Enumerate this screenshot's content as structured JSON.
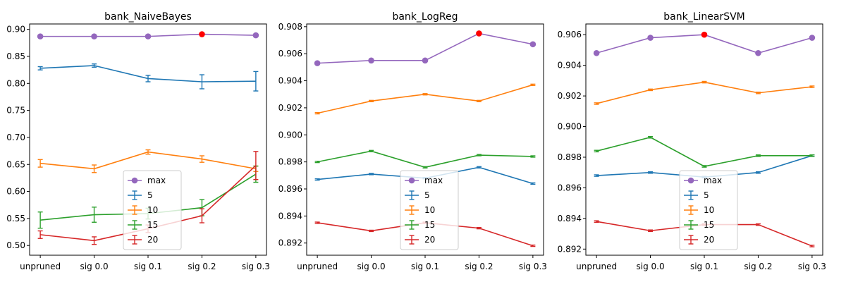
{
  "chart_data": [
    {
      "type": "line",
      "title": "bank_NaiveBayes",
      "categories": [
        "unpruned",
        "sig 0.0",
        "sig 0.1",
        "sig 0.2",
        "sig 0.3"
      ],
      "ylim": [
        0.482,
        0.91
      ],
      "yticks": [
        0.5,
        0.55,
        0.6,
        0.65,
        0.7,
        0.75,
        0.8,
        0.85,
        0.9
      ],
      "ytick_labels": [
        "0.50",
        "0.55",
        "0.60",
        "0.65",
        "0.70",
        "0.75",
        "0.80",
        "0.85",
        "0.90"
      ],
      "grid": false,
      "legend_position": "lower center",
      "max_marker_index": 3,
      "series": [
        {
          "name": "max",
          "color": "#9467bd",
          "marker": "circle",
          "values": [
            0.887,
            0.887,
            0.887,
            0.891,
            0.889
          ]
        },
        {
          "name": "5",
          "color": "#1f77b4",
          "values": [
            0.828,
            0.833,
            0.809,
            0.803,
            0.804
          ],
          "errors": [
            0.003,
            0.003,
            0.006,
            0.013,
            0.018
          ]
        },
        {
          "name": "10",
          "color": "#ff7f0e",
          "values": [
            0.652,
            0.642,
            0.673,
            0.66,
            0.642
          ],
          "errors": [
            0.007,
            0.007,
            0.004,
            0.006,
            0.005
          ]
        },
        {
          "name": "15",
          "color": "#2ca02c",
          "values": [
            0.547,
            0.557,
            0.559,
            0.57,
            0.632
          ],
          "errors": [
            0.015,
            0.014,
            0.01,
            0.015,
            0.015
          ]
        },
        {
          "name": "20",
          "color": "#d62728",
          "values": [
            0.52,
            0.509,
            0.531,
            0.555,
            0.648
          ],
          "errors": [
            0.007,
            0.007,
            0.007,
            0.013,
            0.026
          ]
        }
      ]
    },
    {
      "type": "line",
      "title": "bank_LogReg",
      "categories": [
        "unpruned",
        "sig 0.0",
        "sig 0.1",
        "sig 0.2",
        "sig 0.3"
      ],
      "ylim": [
        0.8911,
        0.9082
      ],
      "yticks": [
        0.892,
        0.894,
        0.896,
        0.898,
        0.9,
        0.902,
        0.904,
        0.906,
        0.908
      ],
      "ytick_labels": [
        "0.892",
        "0.894",
        "0.896",
        "0.898",
        "0.900",
        "0.902",
        "0.904",
        "0.906",
        "0.908"
      ],
      "grid": false,
      "legend_position": "lower center",
      "max_marker_index": 3,
      "series": [
        {
          "name": "max",
          "color": "#9467bd",
          "marker": "circle",
          "values": [
            0.9053,
            0.9055,
            0.9055,
            0.9075,
            0.9067
          ]
        },
        {
          "name": "5",
          "color": "#1f77b4",
          "values": [
            0.8967,
            0.8971,
            0.8968,
            0.8976,
            0.8964
          ],
          "errors": [
            5e-05,
            5e-05,
            5e-05,
            5e-05,
            5e-05
          ]
        },
        {
          "name": "10",
          "color": "#ff7f0e",
          "values": [
            0.9016,
            0.9025,
            0.903,
            0.9025,
            0.9037
          ],
          "errors": [
            5e-05,
            5e-05,
            5e-05,
            5e-05,
            5e-05
          ]
        },
        {
          "name": "15",
          "color": "#2ca02c",
          "values": [
            0.898,
            0.8988,
            0.8976,
            0.8985,
            0.8984
          ],
          "errors": [
            5e-05,
            5e-05,
            5e-05,
            5e-05,
            5e-05
          ]
        },
        {
          "name": "20",
          "color": "#d62728",
          "values": [
            0.8935,
            0.8929,
            0.8935,
            0.8931,
            0.8918
          ],
          "errors": [
            5e-05,
            5e-05,
            5e-05,
            5e-05,
            5e-05
          ]
        }
      ]
    },
    {
      "type": "line",
      "title": "bank_LinearSVM",
      "categories": [
        "unpruned",
        "sig 0.0",
        "sig 0.1",
        "sig 0.2",
        "sig 0.3"
      ],
      "ylim": [
        0.8916,
        0.9067
      ],
      "yticks": [
        0.892,
        0.894,
        0.896,
        0.898,
        0.9,
        0.902,
        0.904,
        0.906
      ],
      "ytick_labels": [
        "0.892",
        "0.894",
        "0.896",
        "0.898",
        "0.900",
        "0.902",
        "0.904",
        "0.906"
      ],
      "grid": false,
      "legend_position": "lower center",
      "max_marker_index": 2,
      "series": [
        {
          "name": "max",
          "color": "#9467bd",
          "marker": "circle",
          "values": [
            0.9048,
            0.9058,
            0.906,
            0.9048,
            0.9058
          ]
        },
        {
          "name": "5",
          "color": "#1f77b4",
          "values": [
            0.8968,
            0.897,
            0.8967,
            0.897,
            0.8981
          ],
          "errors": [
            5e-05,
            5e-05,
            5e-05,
            5e-05,
            5e-05
          ]
        },
        {
          "name": "10",
          "color": "#ff7f0e",
          "values": [
            0.9015,
            0.9024,
            0.9029,
            0.9022,
            0.9026
          ],
          "errors": [
            5e-05,
            5e-05,
            5e-05,
            5e-05,
            5e-05
          ]
        },
        {
          "name": "15",
          "color": "#2ca02c",
          "values": [
            0.8984,
            0.8993,
            0.8974,
            0.8981,
            0.8981
          ],
          "errors": [
            5e-05,
            5e-05,
            5e-05,
            5e-05,
            5e-05
          ]
        },
        {
          "name": "20",
          "color": "#d62728",
          "values": [
            0.8938,
            0.8932,
            0.8936,
            0.8936,
            0.8922
          ],
          "errors": [
            5e-05,
            5e-05,
            5e-05,
            5e-05,
            5e-05
          ]
        }
      ]
    }
  ],
  "colors": {
    "max_marker": "#ff0000",
    "axes": "#000000",
    "legend_border": "#cccccc",
    "background": "#ffffff"
  }
}
